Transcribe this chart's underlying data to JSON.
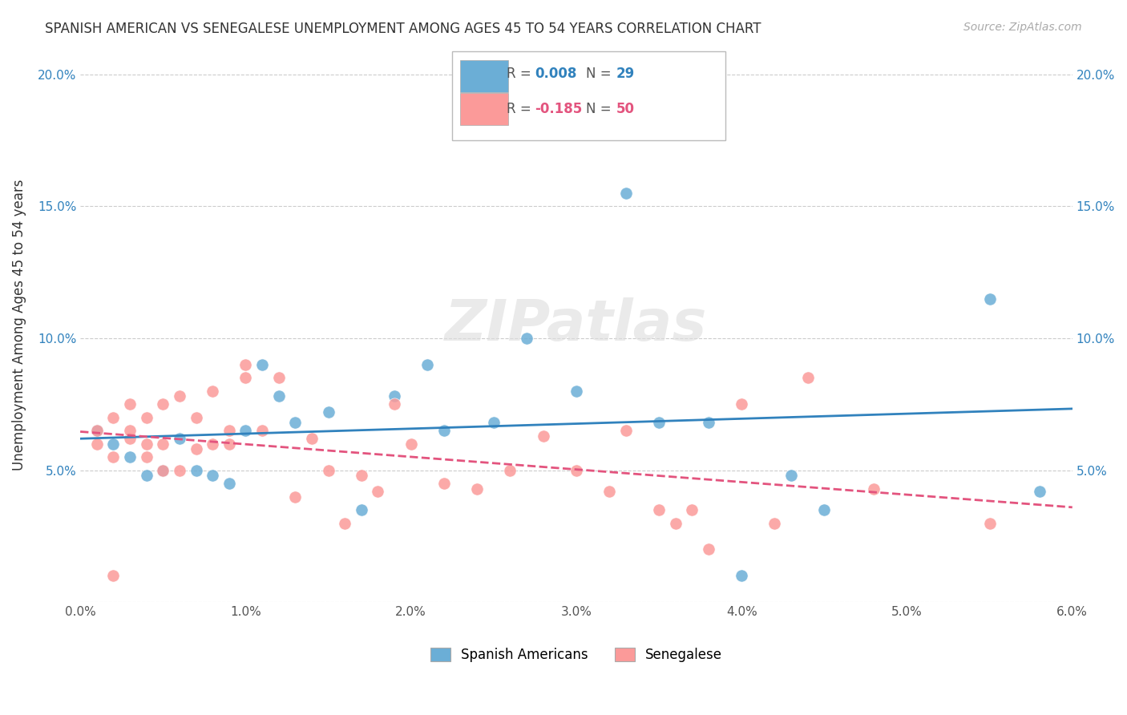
{
  "title": "SPANISH AMERICAN VS SENEGALESE UNEMPLOYMENT AMONG AGES 45 TO 54 YEARS CORRELATION CHART",
  "source": "Source: ZipAtlas.com",
  "ylabel": "Unemployment Among Ages 45 to 54 years",
  "xlim": [
    0.0,
    0.06
  ],
  "ylim": [
    0.0,
    0.21
  ],
  "xticks": [
    0.0,
    0.01,
    0.02,
    0.03,
    0.04,
    0.05,
    0.06
  ],
  "xticklabels": [
    "0.0%",
    "1.0%",
    "2.0%",
    "3.0%",
    "4.0%",
    "5.0%",
    "6.0%"
  ],
  "yticks": [
    0.0,
    0.05,
    0.1,
    0.15,
    0.2
  ],
  "yticklabels": [
    "",
    "5.0%",
    "10.0%",
    "15.0%",
    "20.0%"
  ],
  "legend_labels": [
    "Spanish Americans",
    "Senegalese"
  ],
  "blue_R_label": "R = ",
  "blue_R_val": "0.008",
  "blue_N_label": "N = ",
  "blue_N_val": "29",
  "pink_R_label": "R = ",
  "pink_R_val": "-0.185",
  "pink_N_label": "N = ",
  "pink_N_val": "50",
  "blue_color": "#6baed6",
  "pink_color": "#fb9a99",
  "blue_line_color": "#3182bd",
  "pink_line_color": "#e3547e",
  "watermark": "ZIPatlas",
  "blue_scatter_x": [
    0.001,
    0.002,
    0.003,
    0.004,
    0.005,
    0.006,
    0.007,
    0.008,
    0.009,
    0.01,
    0.011,
    0.012,
    0.013,
    0.015,
    0.017,
    0.019,
    0.021,
    0.022,
    0.025,
    0.027,
    0.03,
    0.033,
    0.035,
    0.038,
    0.04,
    0.043,
    0.045,
    0.055,
    0.058
  ],
  "blue_scatter_y": [
    0.065,
    0.06,
    0.055,
    0.048,
    0.05,
    0.062,
    0.05,
    0.048,
    0.045,
    0.065,
    0.09,
    0.078,
    0.068,
    0.072,
    0.035,
    0.078,
    0.09,
    0.065,
    0.068,
    0.1,
    0.08,
    0.155,
    0.068,
    0.068,
    0.01,
    0.048,
    0.035,
    0.115,
    0.042
  ],
  "pink_scatter_x": [
    0.001,
    0.001,
    0.002,
    0.002,
    0.002,
    0.003,
    0.003,
    0.003,
    0.004,
    0.004,
    0.004,
    0.005,
    0.005,
    0.005,
    0.006,
    0.006,
    0.007,
    0.007,
    0.008,
    0.008,
    0.009,
    0.009,
    0.01,
    0.01,
    0.011,
    0.012,
    0.013,
    0.014,
    0.015,
    0.016,
    0.017,
    0.018,
    0.019,
    0.02,
    0.022,
    0.024,
    0.026,
    0.028,
    0.03,
    0.032,
    0.033,
    0.035,
    0.036,
    0.037,
    0.038,
    0.04,
    0.042,
    0.044,
    0.048,
    0.055
  ],
  "pink_scatter_y": [
    0.06,
    0.065,
    0.01,
    0.055,
    0.07,
    0.062,
    0.065,
    0.075,
    0.055,
    0.06,
    0.07,
    0.06,
    0.075,
    0.05,
    0.05,
    0.078,
    0.058,
    0.07,
    0.06,
    0.08,
    0.06,
    0.065,
    0.085,
    0.09,
    0.065,
    0.085,
    0.04,
    0.062,
    0.05,
    0.03,
    0.048,
    0.042,
    0.075,
    0.06,
    0.045,
    0.043,
    0.05,
    0.063,
    0.05,
    0.042,
    0.065,
    0.035,
    0.03,
    0.035,
    0.02,
    0.075,
    0.03,
    0.085,
    0.043,
    0.03
  ]
}
